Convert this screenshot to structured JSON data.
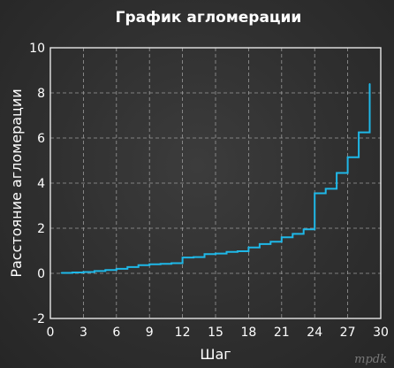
{
  "chart_data": {
    "type": "line",
    "step": true,
    "title": "График агломерации",
    "xlabel": "Шаг",
    "ylabel": "Расстояние агломерации",
    "xlim": [
      0,
      30
    ],
    "ylim": [
      -2,
      10
    ],
    "xticks": [
      0,
      3,
      6,
      9,
      12,
      15,
      18,
      21,
      24,
      27,
      30
    ],
    "yticks": [
      -2,
      0,
      2,
      4,
      6,
      8,
      10
    ],
    "grid": true,
    "series": [
      {
        "color": "#1fb8e8",
        "x": [
          1,
          2,
          3,
          4,
          5,
          6,
          7,
          8,
          9,
          10,
          11,
          12,
          13,
          14,
          15,
          16,
          17,
          18,
          19,
          20,
          21,
          22,
          23,
          24,
          25,
          26,
          27,
          28,
          29
        ],
        "y": [
          0.02,
          0.04,
          0.06,
          0.1,
          0.15,
          0.2,
          0.28,
          0.36,
          0.4,
          0.42,
          0.45,
          0.7,
          0.72,
          0.85,
          0.88,
          0.95,
          0.98,
          1.15,
          1.3,
          1.4,
          1.6,
          1.75,
          1.95,
          3.55,
          3.75,
          4.45,
          5.15,
          6.25,
          8.4
        ]
      }
    ]
  },
  "watermark": {
    "text": "mpdk"
  }
}
